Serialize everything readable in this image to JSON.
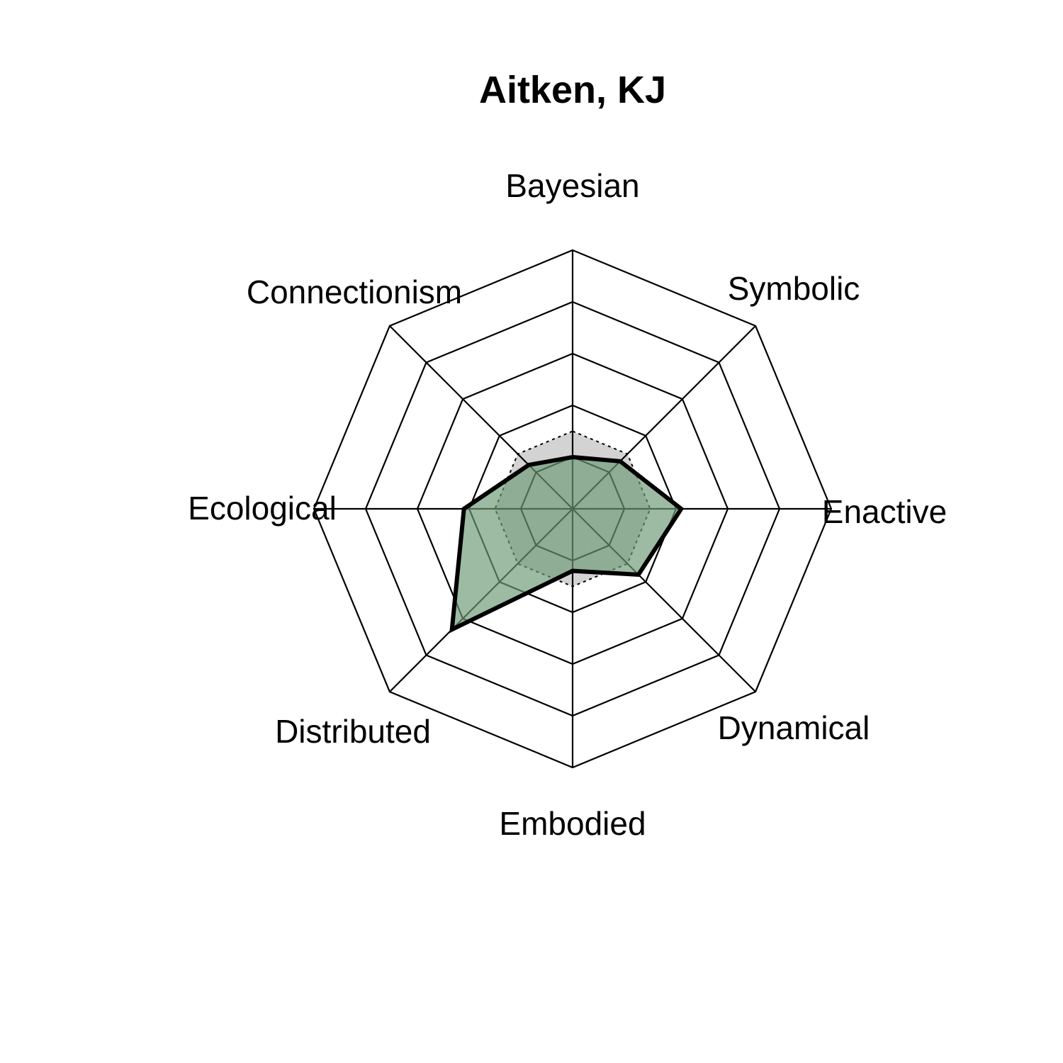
{
  "chart_data": {
    "type": "radar",
    "title": "Aitken, KJ",
    "axes": [
      "Bayesian",
      "Symbolic",
      "Enactive",
      "Dynamical",
      "Embodied",
      "Distributed",
      "Ecological",
      "Connectionism"
    ],
    "rlim": [
      0,
      5
    ],
    "grid_levels": 5,
    "series": [
      {
        "values": [
          1.0,
          1.3,
          2.1,
          1.8,
          1.2,
          3.3,
          2.1,
          1.2
        ],
        "fill": "#6f9a78",
        "stroke": "#000000",
        "style": "solid"
      },
      {
        "values": [
          1.5,
          1.5,
          1.5,
          1.5,
          1.5,
          1.5,
          1.5,
          1.5
        ],
        "fill": "#d3d3d3",
        "stroke": "#000000",
        "style": "dotted"
      }
    ]
  },
  "colors": {
    "grid": "#000000",
    "profile_fill": "#6f9a78",
    "reference_fill": "#d3d3d3"
  }
}
